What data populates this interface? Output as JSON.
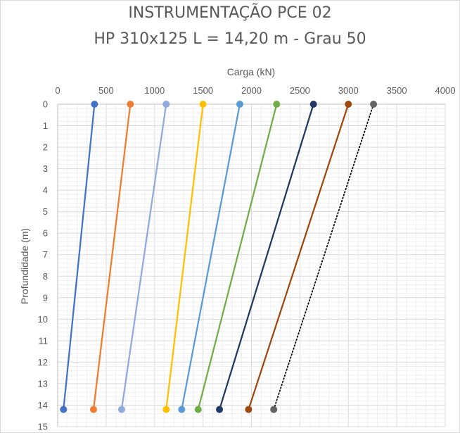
{
  "chart_data": {
    "type": "line",
    "title": "INSTRUMENTAÇÃO PCE 02",
    "subtitle": "HP 310x125 L = 14,20 m - Grau 50",
    "xlabel": "Carga (kN)",
    "ylabel": "Profundidade  (m)",
    "xlim": [
      0,
      4000
    ],
    "ylim": [
      15,
      0
    ],
    "x_ticks": [
      "0",
      "500",
      "1000",
      "1500",
      "2000",
      "2500",
      "3000",
      "3500",
      "4000"
    ],
    "y_ticks": [
      "0",
      "1",
      "2",
      "3",
      "4",
      "5",
      "6",
      "7",
      "8",
      "9",
      "10",
      "11",
      "12",
      "13",
      "14",
      "15"
    ],
    "x_axis_position": "top",
    "y_axis_reversed": true,
    "grid": true,
    "legend": "none",
    "series": [
      {
        "color": "#4472c4",
        "style": "solid",
        "x": [
          380,
          60
        ],
        "y": [
          0,
          14.2
        ]
      },
      {
        "color": "#ed7d31",
        "style": "solid",
        "x": [
          750,
          370
        ],
        "y": [
          0,
          14.2
        ]
      },
      {
        "color": "#8faadc",
        "style": "solid",
        "x": [
          1120,
          660
        ],
        "y": [
          0,
          14.2
        ]
      },
      {
        "color": "#ffc000",
        "style": "solid",
        "x": [
          1500,
          1120
        ],
        "y": [
          0,
          14.2
        ]
      },
      {
        "color": "#5b9bd5",
        "style": "solid",
        "x": [
          1880,
          1280
        ],
        "y": [
          0,
          14.2
        ]
      },
      {
        "color": "#70ad47",
        "style": "solid",
        "x": [
          2260,
          1450
        ],
        "y": [
          0,
          14.2
        ]
      },
      {
        "color": "#203864",
        "style": "solid",
        "x": [
          2640,
          1670
        ],
        "y": [
          0,
          14.2
        ]
      },
      {
        "color": "#9e480e",
        "style": "solid",
        "x": [
          3000,
          1970
        ],
        "y": [
          0,
          14.2
        ]
      },
      {
        "color": "#000000",
        "style": "dotted",
        "marker_color": "#636363",
        "x": [
          3260,
          2230
        ],
        "y": [
          0,
          14.2
        ]
      }
    ]
  }
}
